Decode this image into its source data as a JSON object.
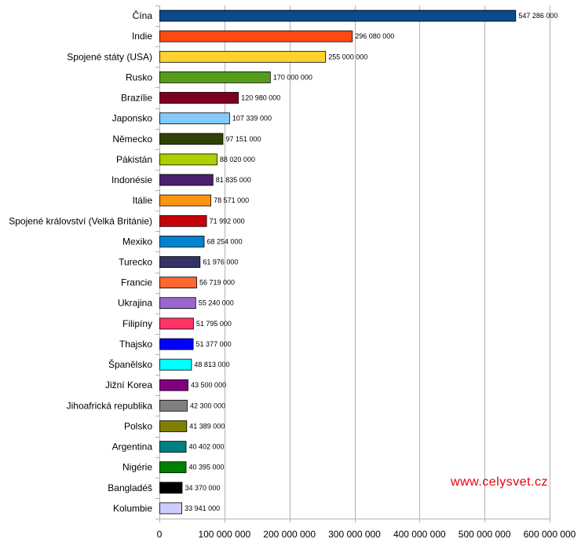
{
  "chart_data": {
    "type": "bar",
    "orientation": "horizontal",
    "title": "",
    "xlabel": "",
    "ylabel": "",
    "xlim": [
      0,
      600000000
    ],
    "xticks": [
      0,
      100000000,
      200000000,
      300000000,
      400000000,
      500000000,
      600000000
    ],
    "xtick_labels": [
      "0",
      "100 000 000",
      "200 000 000",
      "300 000 000",
      "400 000 000",
      "500 000 000",
      "600 000 000"
    ],
    "grid": "vertical",
    "legend": "none",
    "watermark": "www.celysvet.cz",
    "watermark_color": "#e8000b",
    "bars": [
      {
        "category": "Čína",
        "value": 547286000,
        "label": "547 286 000",
        "color": "#0b4a8c"
      },
      {
        "category": "Indie",
        "value": 296080000,
        "label": "296 080 000",
        "color": "#ff4a12"
      },
      {
        "category": "Spojené státy (USA)",
        "value": 255000000,
        "label": "255 000 000",
        "color": "#ffd22e"
      },
      {
        "category": "Rusko",
        "value": 170000000,
        "label": "170 000 000",
        "color": "#579d1c"
      },
      {
        "category": "Brazílie",
        "value": 120980000,
        "label": "120 980 000",
        "color": "#7e0021"
      },
      {
        "category": "Japonsko",
        "value": 107339000,
        "label": "107 339 000",
        "color": "#83caff"
      },
      {
        "category": "Německo",
        "value": 97151000,
        "label": "97 151 000",
        "color": "#314004"
      },
      {
        "category": "Pákistán",
        "value": 88020000,
        "label": "88 020 000",
        "color": "#aecf00"
      },
      {
        "category": "Indonésie",
        "value": 81835000,
        "label": "81 835 000",
        "color": "#4b1f6f"
      },
      {
        "category": "Itálie",
        "value": 78571000,
        "label": "78 571 000",
        "color": "#ff950e"
      },
      {
        "category": "Spojené království (Velká Británie)",
        "value": 71992000,
        "label": "71 992 000",
        "color": "#c5000b"
      },
      {
        "category": "Mexiko",
        "value": 68254000,
        "label": "68 254 000",
        "color": "#0084d1"
      },
      {
        "category": "Turecko",
        "value": 61976000,
        "label": "61 976 000",
        "color": "#333366"
      },
      {
        "category": "Francie",
        "value": 56719000,
        "label": "56 719 000",
        "color": "#ff6633"
      },
      {
        "category": "Ukrajina",
        "value": 55240000,
        "label": "55 240 000",
        "color": "#9966cc"
      },
      {
        "category": "Filipíny",
        "value": 51795000,
        "label": "51 795 000",
        "color": "#ff3366"
      },
      {
        "category": "Thajsko",
        "value": 51377000,
        "label": "51 377 000",
        "color": "#0000ff"
      },
      {
        "category": "Španělsko",
        "value": 48813000,
        "label": "48 813 000",
        "color": "#00ffff"
      },
      {
        "category": "Jižní Korea",
        "value": 43500000,
        "label": "43 500 000",
        "color": "#800080"
      },
      {
        "category": "Jihoafrická republika",
        "value": 42300000,
        "label": "42 300 000",
        "color": "#808080"
      },
      {
        "category": "Polsko",
        "value": 41389000,
        "label": "41 389 000",
        "color": "#808000"
      },
      {
        "category": "Argentina",
        "value": 40402000,
        "label": "40 402 000",
        "color": "#008080"
      },
      {
        "category": "Nigérie",
        "value": 40395000,
        "label": "40 395 000",
        "color": "#008000"
      },
      {
        "category": "Bangladéš",
        "value": 34370000,
        "label": "34 370 000",
        "color": "#000000"
      },
      {
        "category": "Kolumbie",
        "value": 33941000,
        "label": "33 941 000",
        "color": "#ccccff"
      }
    ]
  }
}
